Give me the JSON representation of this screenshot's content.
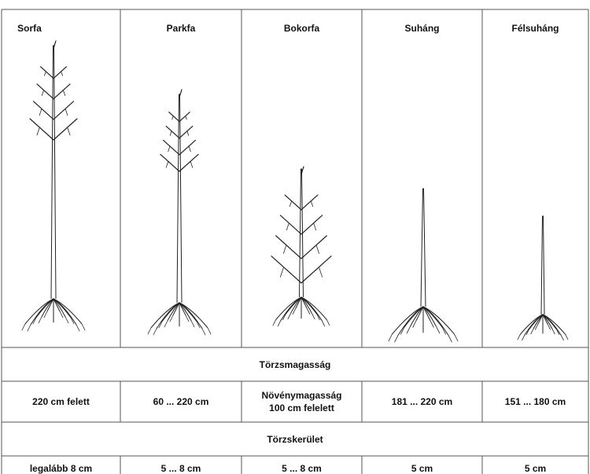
{
  "columns": [
    {
      "name": "Sorfa"
    },
    {
      "name": "Parkfa"
    },
    {
      "name": "Bokorfa"
    },
    {
      "name": "Suháng"
    },
    {
      "name": "Félsuháng"
    }
  ],
  "rows": [
    {
      "header": "Törzsmagasság",
      "values": [
        "220 cm felett",
        "60  ... 220 cm",
        [
          "Növénymagasság",
          "100 cm felelett"
        ],
        "181 ...  220 cm",
        "151 ... 180 cm"
      ]
    },
    {
      "header": "Törzskerület",
      "values": [
        "legalább 8 cm",
        "5 ... 8 cm",
        "5 ... 8 cm",
        "5 cm",
        "5 cm"
      ]
    }
  ]
}
